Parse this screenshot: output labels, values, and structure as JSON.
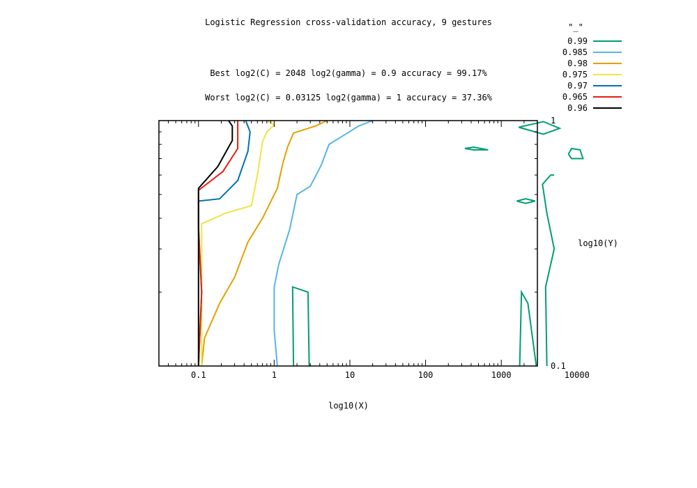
{
  "chart_data": {
    "type": "contour",
    "title": "Logistic Regression cross-validation accuracy, 9 gestures",
    "annotations": {
      "best": "Best log2(C) = 2048  log2(gamma) = 0.9  accuracy = 99.17%",
      "worst": "Worst log2(C) = 0.03125  log2(gamma) = 1   accuracy = 37.36%"
    },
    "xlabel": "log10(X)",
    "ylabel": "log10(Y)",
    "x_scale": "log",
    "y_scale": "log",
    "xlim": [
      0.03,
      3000
    ],
    "ylim": [
      0.1,
      1
    ],
    "x_ticks": [
      {
        "value": 0.1,
        "label": "0.1"
      },
      {
        "value": 1,
        "label": "1"
      },
      {
        "value": 10,
        "label": "10"
      },
      {
        "value": 100,
        "label": "100"
      },
      {
        "value": 1000,
        "label": "1000"
      },
      {
        "value": 10000,
        "label": "10000"
      }
    ],
    "y_ticks": [
      {
        "value": 0.1,
        "label": "0.1"
      },
      {
        "value": 1,
        "label": "1"
      }
    ],
    "grid": false,
    "legend": {
      "title": "\"_\"",
      "placement": "top-right"
    },
    "series": [
      {
        "name": "0.99",
        "color": "#009e73",
        "paths": [
          [
            [
              1.8,
              0.1
            ],
            [
              1.75,
              0.21
            ],
            [
              2.8,
              0.2
            ],
            [
              2.9,
              0.1
            ]
          ],
          [
            [
              1750,
              0.1
            ],
            [
              1850,
              0.2
            ],
            [
              2250,
              0.18
            ],
            [
              2900,
              0.1
            ]
          ],
          [
            [
              4000,
              0.1
            ],
            [
              3850,
              0.21
            ],
            [
              5000,
              0.3
            ],
            [
              4000,
              0.42
            ],
            [
              3500,
              0.55
            ],
            [
              4500,
              0.6
            ],
            [
              5000,
              0.6
            ]
          ],
          [
            [
              1600,
              0.47
            ],
            [
              2100,
              0.46
            ],
            [
              2800,
              0.47
            ],
            [
              2100,
              0.48
            ],
            [
              1600,
              0.47
            ]
          ],
          [
            [
              330,
              0.77
            ],
            [
              430,
              0.76
            ],
            [
              670,
              0.76
            ],
            [
              430,
              0.78
            ],
            [
              330,
              0.77
            ]
          ],
          [
            [
              1700,
              0.94
            ],
            [
              3600,
              0.88
            ],
            [
              5900,
              0.93
            ],
            [
              3600,
              0.99
            ],
            [
              1700,
              0.94
            ]
          ],
          [
            [
              7700,
              0.73
            ],
            [
              8500,
              0.7
            ],
            [
              12000,
              0.7
            ],
            [
              11000,
              0.76
            ],
            [
              8500,
              0.77
            ],
            [
              7700,
              0.73
            ]
          ]
        ]
      },
      {
        "name": "0.985",
        "color": "#56b4e9",
        "paths": [
          [
            [
              1.1,
              0.1
            ],
            [
              1.0,
              0.14
            ],
            [
              1.0,
              0.21
            ],
            [
              1.15,
              0.26
            ],
            [
              1.6,
              0.36
            ],
            [
              2.0,
              0.5
            ],
            [
              3.0,
              0.54
            ],
            [
              4.2,
              0.66
            ],
            [
              5.3,
              0.8
            ],
            [
              9.3,
              0.89
            ],
            [
              13,
              0.95
            ],
            [
              20,
              1.0
            ]
          ]
        ]
      },
      {
        "name": "0.98",
        "color": "#e69f00",
        "paths": [
          [
            [
              0.11,
              0.1
            ],
            [
              0.12,
              0.13
            ],
            [
              0.19,
              0.18
            ],
            [
              0.3,
              0.23
            ],
            [
              0.45,
              0.32
            ],
            [
              0.7,
              0.4
            ],
            [
              1.1,
              0.53
            ],
            [
              1.3,
              0.67
            ],
            [
              1.5,
              0.78
            ],
            [
              1.8,
              0.89
            ],
            [
              3.5,
              0.95
            ],
            [
              5.0,
              1.0
            ]
          ]
        ]
      },
      {
        "name": "0.975",
        "color": "#f0e442",
        "paths": [
          [
            [
              0.11,
              0.1
            ],
            [
              0.11,
              0.38
            ],
            [
              0.23,
              0.42
            ],
            [
              0.5,
              0.45
            ],
            [
              0.6,
              0.6
            ],
            [
              0.7,
              0.82
            ],
            [
              0.8,
              0.9
            ],
            [
              1.0,
              0.96
            ],
            [
              0.8,
              1.0
            ]
          ]
        ]
      },
      {
        "name": "0.97",
        "color": "#0072b2",
        "paths": [
          [
            [
              0.1,
              0.1
            ],
            [
              0.11,
              0.2
            ],
            [
              0.1,
              0.36
            ],
            [
              0.1,
              0.47
            ],
            [
              0.19,
              0.48
            ],
            [
              0.33,
              0.57
            ],
            [
              0.45,
              0.75
            ],
            [
              0.48,
              0.9
            ],
            [
              0.42,
              1.0
            ]
          ]
        ]
      },
      {
        "name": "0.965",
        "color": "#e51e10",
        "paths": [
          [
            [
              0.1,
              0.1
            ],
            [
              0.11,
              0.2
            ],
            [
              0.1,
              0.37
            ],
            [
              0.1,
              0.52
            ],
            [
              0.21,
              0.62
            ],
            [
              0.33,
              0.77
            ],
            [
              0.33,
              0.92
            ],
            [
              0.33,
              1.0
            ]
          ]
        ]
      },
      {
        "name": "0.96",
        "color": "#000000",
        "paths": [
          [
            [
              0.1,
              0.1
            ],
            [
              0.1,
              0.23
            ],
            [
              0.1,
              0.35
            ],
            [
              0.1,
              0.53
            ],
            [
              0.18,
              0.65
            ],
            [
              0.28,
              0.83
            ],
            [
              0.28,
              0.95
            ],
            [
              0.25,
              1.0
            ]
          ]
        ]
      }
    ]
  }
}
